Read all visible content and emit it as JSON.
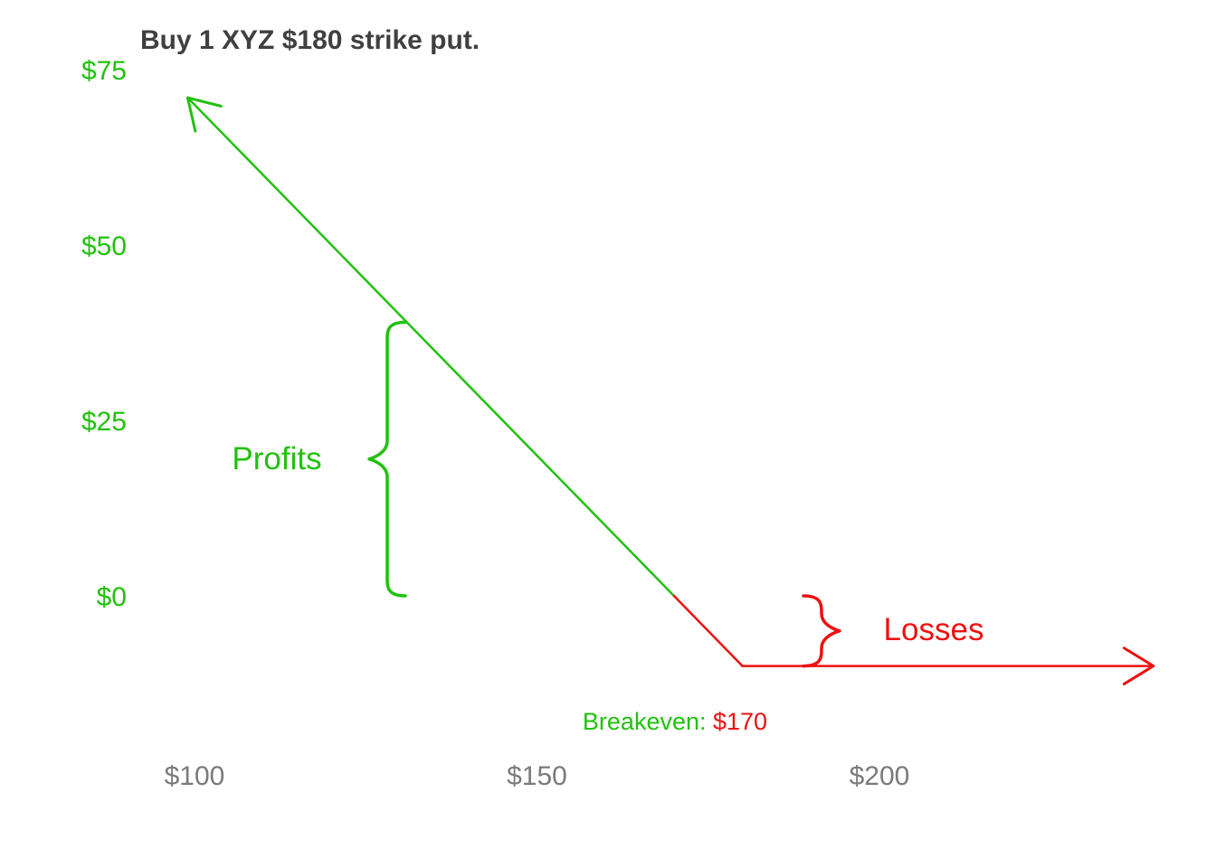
{
  "chart_data": {
    "type": "line",
    "title": "Buy 1 XYZ $180 strike put.",
    "xlabel": "",
    "ylabel": "",
    "xlim": [
      100,
      240
    ],
    "ylim": [
      -10,
      75
    ],
    "strike": 180,
    "premium": 10,
    "x_ticks": [
      {
        "value": 100,
        "label": "$100"
      },
      {
        "value": 150,
        "label": "$150"
      },
      {
        "value": 200,
        "label": "$200"
      }
    ],
    "y_ticks": [
      {
        "value": 0,
        "label": "$0"
      },
      {
        "value": 25,
        "label": "$25"
      },
      {
        "value": 50,
        "label": "$50"
      },
      {
        "value": 75,
        "label": "$75"
      }
    ],
    "series": [
      {
        "x": [
          99,
          130,
          170,
          180,
          240
        ],
        "y": [
          71,
          40,
          0,
          -10,
          -10
        ]
      }
    ],
    "annotations": {
      "profits": {
        "label": "Profits",
        "y_range": [
          0,
          39
        ]
      },
      "losses": {
        "label": "Losses",
        "y_range": [
          -10,
          0
        ]
      },
      "breakeven": {
        "prefix": "Breakeven: ",
        "value_text": "$170",
        "x": 170
      }
    },
    "colors": {
      "profit": "#22c10f",
      "loss": "#ee1111",
      "title": "#404040",
      "x_tick": "#7a7a7a"
    },
    "grid": false,
    "legend": "none"
  }
}
